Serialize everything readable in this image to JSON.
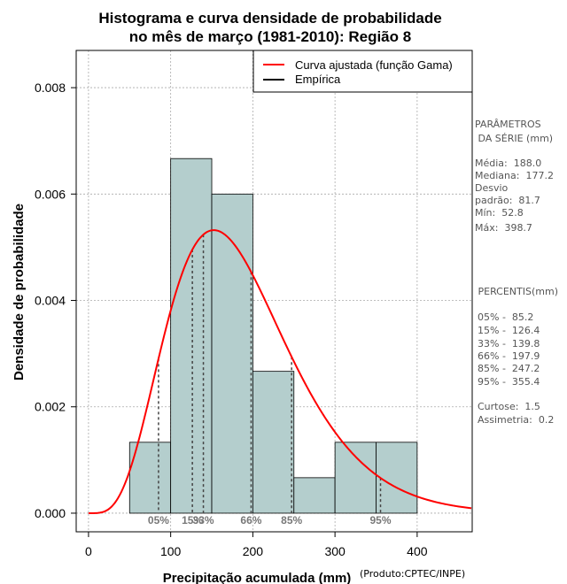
{
  "chart_data": {
    "type": "histogram",
    "title_line1": "Histograma e curva densidade de probabilidade",
    "title_line2": "no mês de março (1981-2010): Região 8",
    "xlabel": "Precipitação acumulada (mm)",
    "ylabel": "Densidade de probabilidade",
    "credit": "(Produto:CPTEC/INPE)",
    "xlim": [
      -15,
      467
    ],
    "ylim": [
      -0.00035,
      0.0087
    ],
    "x_ticks": [
      0,
      100,
      200,
      300,
      400
    ],
    "x_tick_labels": [
      "0",
      "100",
      "200",
      "300",
      "400"
    ],
    "y_ticks": [
      0,
      0.002,
      0.004,
      0.006,
      0.008
    ],
    "y_tick_labels": [
      "0.000",
      "0.002",
      "0.004",
      "0.006",
      "0.008"
    ],
    "grid": true,
    "bins": [
      {
        "start": 50,
        "end": 100,
        "density": 0.001333
      },
      {
        "start": 100,
        "end": 150,
        "density": 0.006667
      },
      {
        "start": 150,
        "end": 200,
        "density": 0.006
      },
      {
        "start": 200,
        "end": 250,
        "density": 0.002667
      },
      {
        "start": 250,
        "end": 300,
        "density": 0.000667
      },
      {
        "start": 300,
        "end": 350,
        "density": 0.001333
      },
      {
        "start": 350,
        "end": 400,
        "density": 0.001333
      }
    ],
    "gamma_fit": {
      "shape": 5.3,
      "rate": 0.0282
    },
    "percentile_lines": [
      {
        "label": "05%",
        "value": 85.2
      },
      {
        "label": "15%",
        "value": 126.4
      },
      {
        "label": "33%",
        "value": 139.8
      },
      {
        "label": "66%",
        "value": 197.9
      },
      {
        "label": "85%",
        "value": 247.2
      },
      {
        "label": "95%",
        "value": 355.4
      }
    ],
    "legend": [
      {
        "label": "Curva ajustada (função Gama)",
        "color": "#ff0000"
      },
      {
        "label": "Empírica",
        "color": "#000000"
      }
    ],
    "legend_position": "top-right"
  },
  "colors": {
    "bar_fill": "#b4cecd",
    "curve": "#ff0000",
    "grid": "#aaaaaa"
  },
  "sidebar": {
    "params_title_1": "PARÂMETROS",
    "params_title_2": " DA SÉRIE (mm)",
    "media": "Média:  188.0",
    "mediana": "Mediana:  177.2",
    "desvio_1": "Desvio",
    "desvio_2": "padrão:  81.7",
    "min": "Mín:  52.8",
    "max": "Máx:  398.7",
    "percentis_title": " PERCENTIS(mm)",
    "p05": "05% -  85.2",
    "p15": "15% -  126.4",
    "p33": "33% -  139.8",
    "p66": "66% -  197.9",
    "p85": "85% -  247.2",
    "p95": "95% -  355.4",
    "curtose": "Curtose:  1.5",
    "assimetria": "Assimetria:  0.2"
  }
}
